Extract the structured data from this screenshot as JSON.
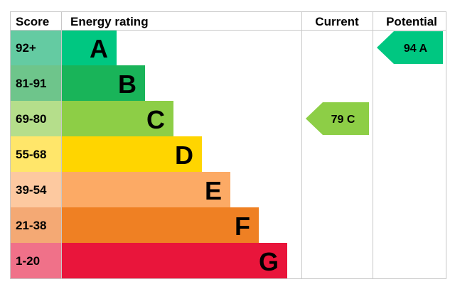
{
  "chart_data": {
    "type": "table",
    "headers": {
      "score": "Score",
      "rating": "Energy rating",
      "current": "Current",
      "potential": "Potential"
    },
    "bands": [
      {
        "score": "92+",
        "letter": "A",
        "band_color": "#00c781",
        "score_color": "#64cba2",
        "relative_length": 1
      },
      {
        "score": "81-91",
        "letter": "B",
        "band_color": "#19b459",
        "score_color": "#6ec58b",
        "relative_length": 2
      },
      {
        "score": "69-80",
        "letter": "C",
        "band_color": "#8dce46",
        "score_color": "#b5de8b",
        "relative_length": 3
      },
      {
        "score": "55-68",
        "letter": "D",
        "band_color": "#ffd500",
        "score_color": "#ffe66a",
        "relative_length": 4
      },
      {
        "score": "39-54",
        "letter": "E",
        "band_color": "#fcaa65",
        "score_color": "#fdc9a0",
        "relative_length": 5
      },
      {
        "score": "21-38",
        "letter": "F",
        "band_color": "#ef8023",
        "score_color": "#f4a974",
        "relative_length": 6
      },
      {
        "score": "1-20",
        "letter": "G",
        "band_color": "#e9153b",
        "score_color": "#f07189",
        "relative_length": 7
      }
    ],
    "current": {
      "value": 79,
      "letter": "C",
      "label": "79 C",
      "color": "#8dce46"
    },
    "potential": {
      "value": 94,
      "letter": "A",
      "label": "94 A",
      "color": "#00c781"
    },
    "border_color": "#c8c8c8"
  }
}
